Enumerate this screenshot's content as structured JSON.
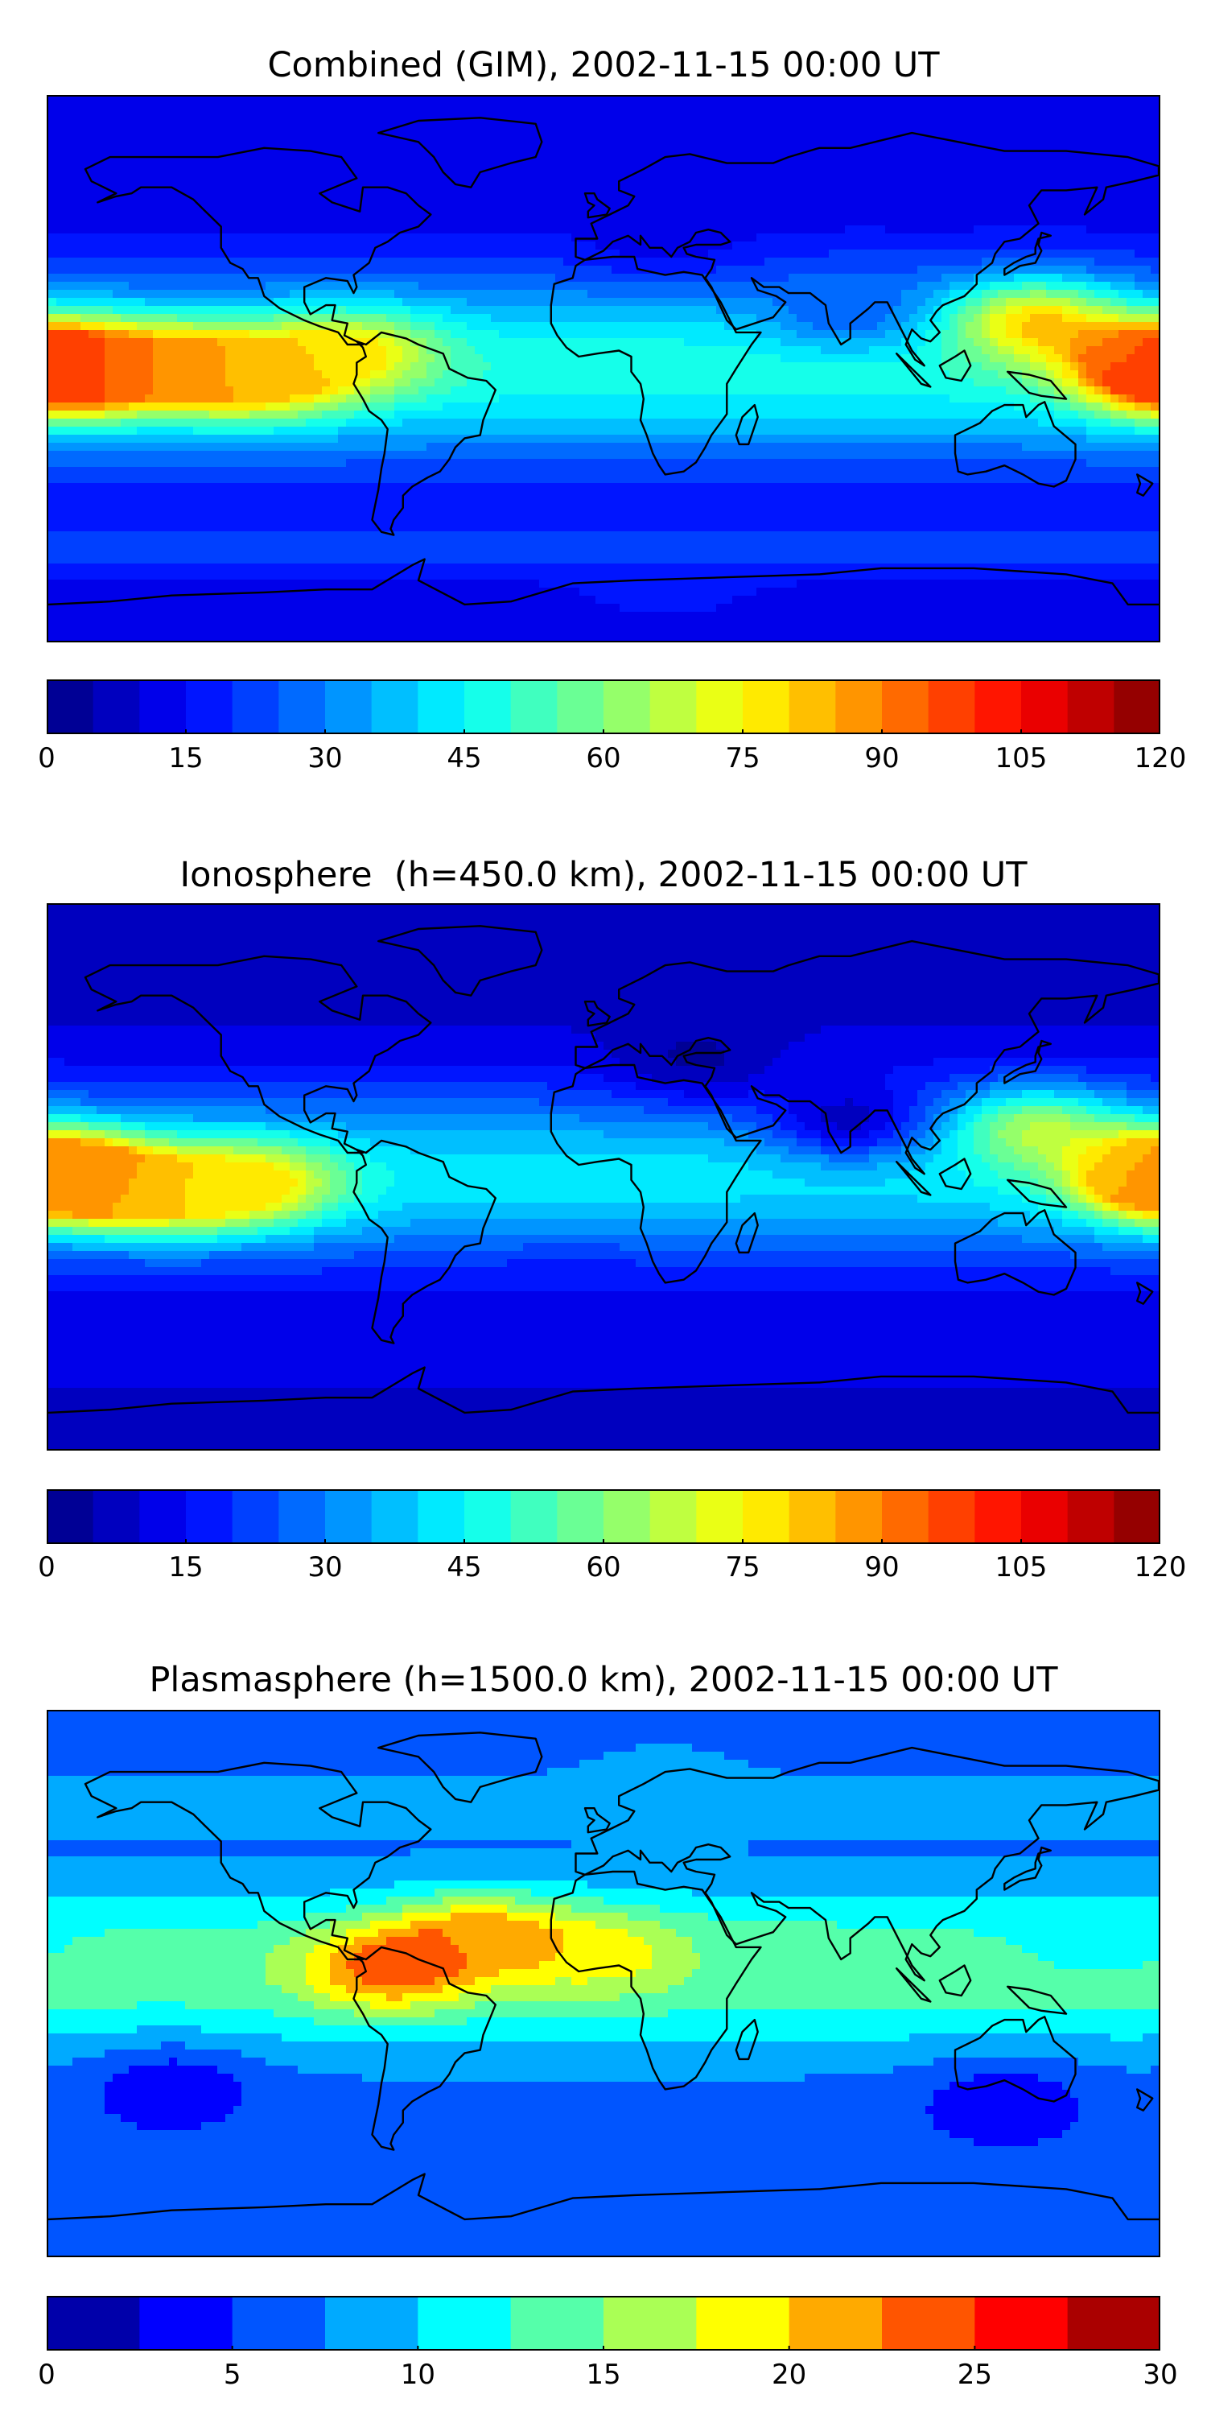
{
  "chart_data": [
    {
      "type": "heatmap",
      "title": "Combined (GIM), 2002-11-15 00:00 UT",
      "xlabel": "",
      "ylabel": "",
      "basemap": "world coastlines, equirectangular projection (longitude -180 to 180, latitude -90 to 90)",
      "colormap": "jet",
      "colorbar": {
        "min": 0,
        "max": 120,
        "step": 5,
        "ticks": [
          "0",
          "15",
          "30",
          "45",
          "60",
          "75",
          "90",
          "105",
          "120"
        ]
      },
      "features": [
        {
          "lon": -170,
          "lat": 0,
          "value": 100
        },
        {
          "lon": -135,
          "lat": 0,
          "value": 85
        },
        {
          "lon": -110,
          "lat": -2,
          "value": 85
        },
        {
          "lon": -80,
          "lat": 5,
          "value": 75
        },
        {
          "lon": 140,
          "lat": 15,
          "value": 80
        },
        {
          "lon": 178,
          "lat": 0,
          "value": 95
        },
        {
          "lon": 20,
          "lat": 45,
          "value": 12
        },
        {
          "lon": 80,
          "lat": 20,
          "value": 25
        },
        {
          "lon": 20,
          "lat": -70,
          "value": 20
        }
      ]
    },
    {
      "type": "heatmap",
      "title": "Ionosphere  (h=450.0 km), 2002-11-15 00:00 UT",
      "xlabel": "",
      "ylabel": "",
      "basemap": "world coastlines, equirectangular projection (longitude -180 to 180, latitude -90 to 90)",
      "colormap": "jet",
      "colorbar": {
        "min": 0,
        "max": 120,
        "step": 5,
        "ticks": [
          "0",
          "15",
          "30",
          "45",
          "60",
          "75",
          "90",
          "105",
          "120"
        ]
      },
      "features": [
        {
          "lon": -172,
          "lat": 0,
          "value": 95
        },
        {
          "lon": -140,
          "lat": -5,
          "value": 80
        },
        {
          "lon": -110,
          "lat": -2,
          "value": 75
        },
        {
          "lon": 140,
          "lat": 15,
          "value": 65
        },
        {
          "lon": 178,
          "lat": 0,
          "value": 80
        },
        {
          "lon": 30,
          "lat": 40,
          "value": 4
        },
        {
          "lon": 80,
          "lat": 20,
          "value": 8
        },
        {
          "lon": -10,
          "lat": -40,
          "value": 15
        }
      ]
    },
    {
      "type": "heatmap",
      "title": "Plasmasphere (h=1500.0 km), 2002-11-15 00:00 UT",
      "xlabel": "",
      "ylabel": "",
      "basemap": "world coastlines, equirectangular projection (longitude -180 to 180, latitude -90 to 90)",
      "colormap": "jet",
      "colorbar": {
        "min": 0,
        "max": 30,
        "step": 2.5,
        "ticks": [
          "0",
          "5",
          "10",
          "15",
          "20",
          "25",
          "30"
        ]
      },
      "features": [
        {
          "lon": -70,
          "lat": 5,
          "value": 24
        },
        {
          "lon": -40,
          "lat": 15,
          "value": 22
        },
        {
          "lon": 0,
          "lat": 10,
          "value": 19
        },
        {
          "lon": 60,
          "lat": 10,
          "value": 13
        },
        {
          "lon": -140,
          "lat": -35,
          "value": 3
        },
        {
          "lon": 130,
          "lat": -40,
          "value": 3
        },
        {
          "lon": 20,
          "lat": 65,
          "value": 10
        },
        {
          "lon": 160,
          "lat": 15,
          "value": 11
        }
      ]
    }
  ]
}
